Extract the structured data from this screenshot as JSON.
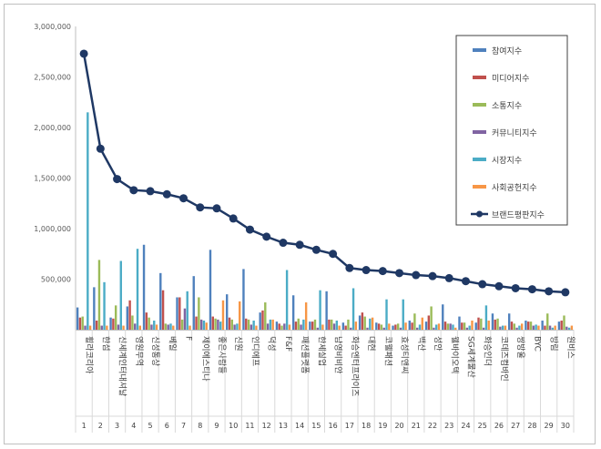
{
  "chart_data": {
    "type": "bar",
    "title": "",
    "xlabel": "",
    "ylabel": "",
    "ylim": [
      0,
      3000000
    ],
    "y_ticks": [
      "3,000,000",
      "2,500,000",
      "2,000,000",
      "1,500,000",
      "1,000,000",
      "500,000",
      ""
    ],
    "y_tick_values": [
      3000000,
      2500000,
      2000000,
      1500000,
      1000000,
      500000,
      0
    ],
    "ranks": [
      "1",
      "2",
      "3",
      "4",
      "5",
      "6",
      "7",
      "8",
      "9",
      "10",
      "11",
      "12",
      "13",
      "14",
      "15",
      "16",
      "17",
      "18",
      "19",
      "20",
      "21",
      "22",
      "23",
      "24",
      "25",
      "26",
      "27",
      "28",
      "29",
      "30"
    ],
    "categories": [
      "휠라코리아",
      "한섬",
      "신세계인터내셔날",
      "영원무역",
      "신성통상",
      "베일",
      "F",
      "제이에스티나",
      "좋은사람들",
      "신원",
      "인디에프",
      "덕성",
      "F&F",
      "패션플랫폼",
      "한세실업",
      "남영비비안",
      "화승엔터프라이즈",
      "대현",
      "코웰패션",
      "효성티앤씨",
      "백산",
      "성안",
      "웰바이오텍",
      "SG세계물산",
      "화승인더",
      "코데즈컴바인",
      "쌍방울",
      "BYC",
      "방림",
      "원비스"
    ],
    "legend_position": "top-right",
    "series": [
      {
        "name": "참여지수",
        "color": "#4f81bd",
        "type": "bar",
        "values": [
          220000,
          420000,
          120000,
          230000,
          840000,
          560000,
          320000,
          530000,
          790000,
          350000,
          600000,
          170000,
          80000,
          340000,
          80000,
          380000,
          70000,
          140000,
          70000,
          40000,
          90000,
          80000,
          250000,
          130000,
          70000,
          160000,
          160000,
          90000,
          90000,
          80000
        ]
      },
      {
        "name": "미디어지수",
        "color": "#c0504d",
        "type": "bar",
        "values": [
          120000,
          90000,
          110000,
          290000,
          170000,
          390000,
          320000,
          130000,
          130000,
          120000,
          110000,
          190000,
          60000,
          80000,
          80000,
          100000,
          40000,
          170000,
          60000,
          50000,
          70000,
          140000,
          80000,
          70000,
          120000,
          100000,
          80000,
          80000,
          40000,
          90000
        ]
      },
      {
        "name": "소통지수",
        "color": "#9bbb59",
        "type": "bar",
        "values": [
          130000,
          690000,
          240000,
          140000,
          120000,
          60000,
          100000,
          320000,
          110000,
          100000,
          100000,
          270000,
          40000,
          110000,
          100000,
          100000,
          100000,
          130000,
          50000,
          60000,
          160000,
          230000,
          60000,
          70000,
          110000,
          110000,
          60000,
          80000,
          160000,
          140000
        ]
      },
      {
        "name": "커뮤니티지수",
        "color": "#8064a2",
        "type": "bar",
        "values": [
          40000,
          40000,
          50000,
          60000,
          50000,
          50000,
          210000,
          100000,
          100000,
          50000,
          50000,
          60000,
          60000,
          50000,
          20000,
          60000,
          20000,
          20000,
          20000,
          20000,
          20000,
          20000,
          60000,
          20000,
          20000,
          30000,
          20000,
          40000,
          40000,
          30000
        ]
      },
      {
        "name": "시장지수",
        "color": "#4bacc6",
        "type": "bar",
        "values": [
          2150000,
          470000,
          680000,
          800000,
          90000,
          60000,
          380000,
          90000,
          80000,
          60000,
          90000,
          100000,
          590000,
          100000,
          390000,
          90000,
          410000,
          110000,
          300000,
          300000,
          50000,
          50000,
          50000,
          40000,
          240000,
          40000,
          40000,
          50000,
          20000,
          20000
        ]
      },
      {
        "name": "사회공헌지수",
        "color": "#f79646",
        "type": "bar",
        "values": [
          40000,
          40000,
          40000,
          40000,
          50000,
          40000,
          40000,
          70000,
          290000,
          280000,
          40000,
          100000,
          50000,
          270000,
          50000,
          40000,
          80000,
          120000,
          60000,
          70000,
          120000,
          60000,
          20000,
          90000,
          90000,
          40000,
          60000,
          40000,
          40000,
          40000
        ]
      },
      {
        "name": "브랜드평판지수",
        "color": "#1f3864",
        "type": "line",
        "values": [
          2730000,
          1790000,
          1490000,
          1380000,
          1370000,
          1340000,
          1300000,
          1210000,
          1200000,
          1100000,
          990000,
          920000,
          860000,
          840000,
          790000,
          750000,
          610000,
          590000,
          580000,
          560000,
          540000,
          530000,
          510000,
          480000,
          450000,
          430000,
          410000,
          400000,
          380000,
          370000
        ]
      }
    ]
  }
}
